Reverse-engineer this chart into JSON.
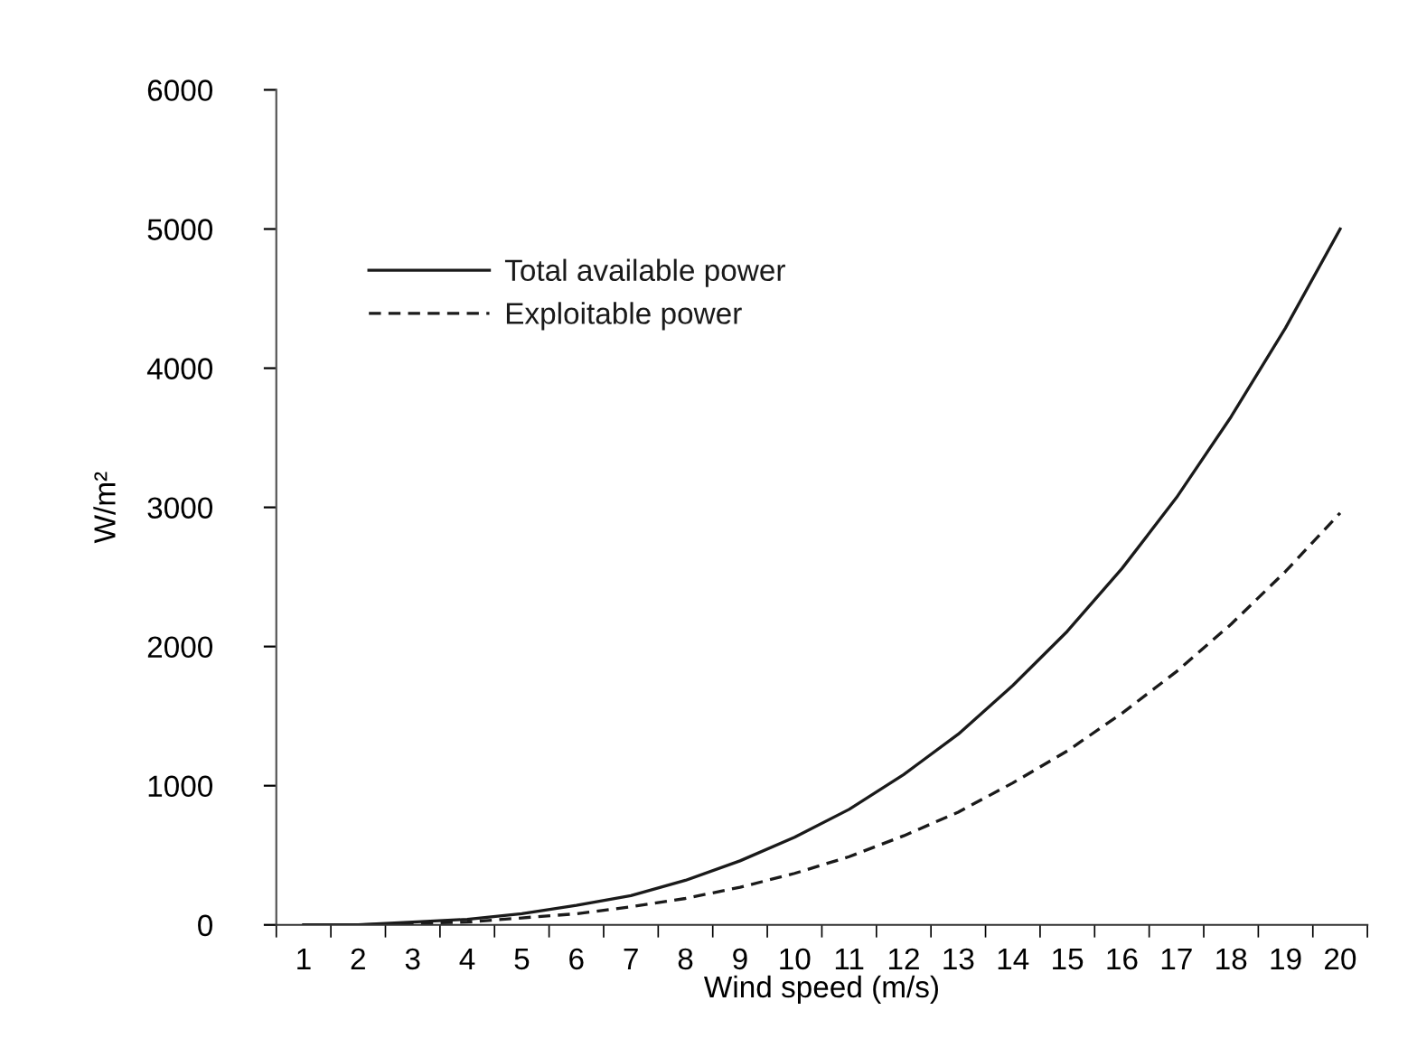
{
  "chart_data": {
    "type": "line",
    "xlabel": "Wind speed (m/s)",
    "ylabel": "W/m²",
    "x": [
      1,
      2,
      3,
      4,
      5,
      6,
      7,
      8,
      9,
      10,
      11,
      12,
      13,
      14,
      15,
      16,
      17,
      18,
      19,
      20
    ],
    "series": [
      {
        "name": "Total available power",
        "color": "#1a1a1a",
        "line_style": "solid",
        "values": [
          0,
          0,
          20,
          40,
          80,
          140,
          210,
          320,
          460,
          630,
          830,
          1080,
          1370,
          1720,
          2110,
          2560,
          3070,
          3650,
          4290,
          5000
        ]
      },
      {
        "name": "Exploitable power",
        "color": "#1a1a1a",
        "line_style": "dashed",
        "values": [
          0,
          0,
          10,
          20,
          50,
          80,
          130,
          190,
          270,
          370,
          490,
          640,
          810,
          1020,
          1250,
          1520,
          1820,
          2160,
          2540,
          2960
        ]
      }
    ],
    "xlim": [
      0.5,
      20.5
    ],
    "xticks": [
      1,
      2,
      3,
      4,
      5,
      6,
      7,
      8,
      9,
      10,
      11,
      12,
      13,
      14,
      15,
      16,
      17,
      18,
      19,
      20,
      {
        "value": 0.5,
        "label": null
      },
      {
        "value": 1.5,
        "label": null
      },
      {
        "value": 2.5,
        "label": null
      },
      {
        "value": 3.5,
        "label": null
      },
      {
        "value": 4.5,
        "label": null
      },
      {
        "value": 5.5,
        "label": null
      },
      {
        "value": 6.5,
        "label": null
      },
      {
        "value": 7.5,
        "label": null
      },
      {
        "value": 8.5,
        "label": null
      },
      {
        "value": 9.5,
        "label": null
      },
      {
        "value": 10.5,
        "label": null
      },
      {
        "value": 11.5,
        "label": null
      },
      {
        "value": 12.5,
        "label": null
      },
      {
        "value": 13.5,
        "label": null
      },
      {
        "value": 14.5,
        "label": null
      },
      {
        "value": 15.5,
        "label": null
      },
      {
        "value": 16.5,
        "label": null
      },
      {
        "value": 17.5,
        "label": null
      },
      {
        "value": 18.5,
        "label": null
      },
      {
        "value": 19.5,
        "label": null
      },
      {
        "value": 20.5,
        "label": null
      }
    ],
    "ylim": [
      0,
      6000
    ],
    "yticks": [
      0,
      1000,
      2000,
      3000,
      4000,
      5000,
      6000
    ],
    "grid": false,
    "legend": "top left",
    "marker": "none"
  }
}
